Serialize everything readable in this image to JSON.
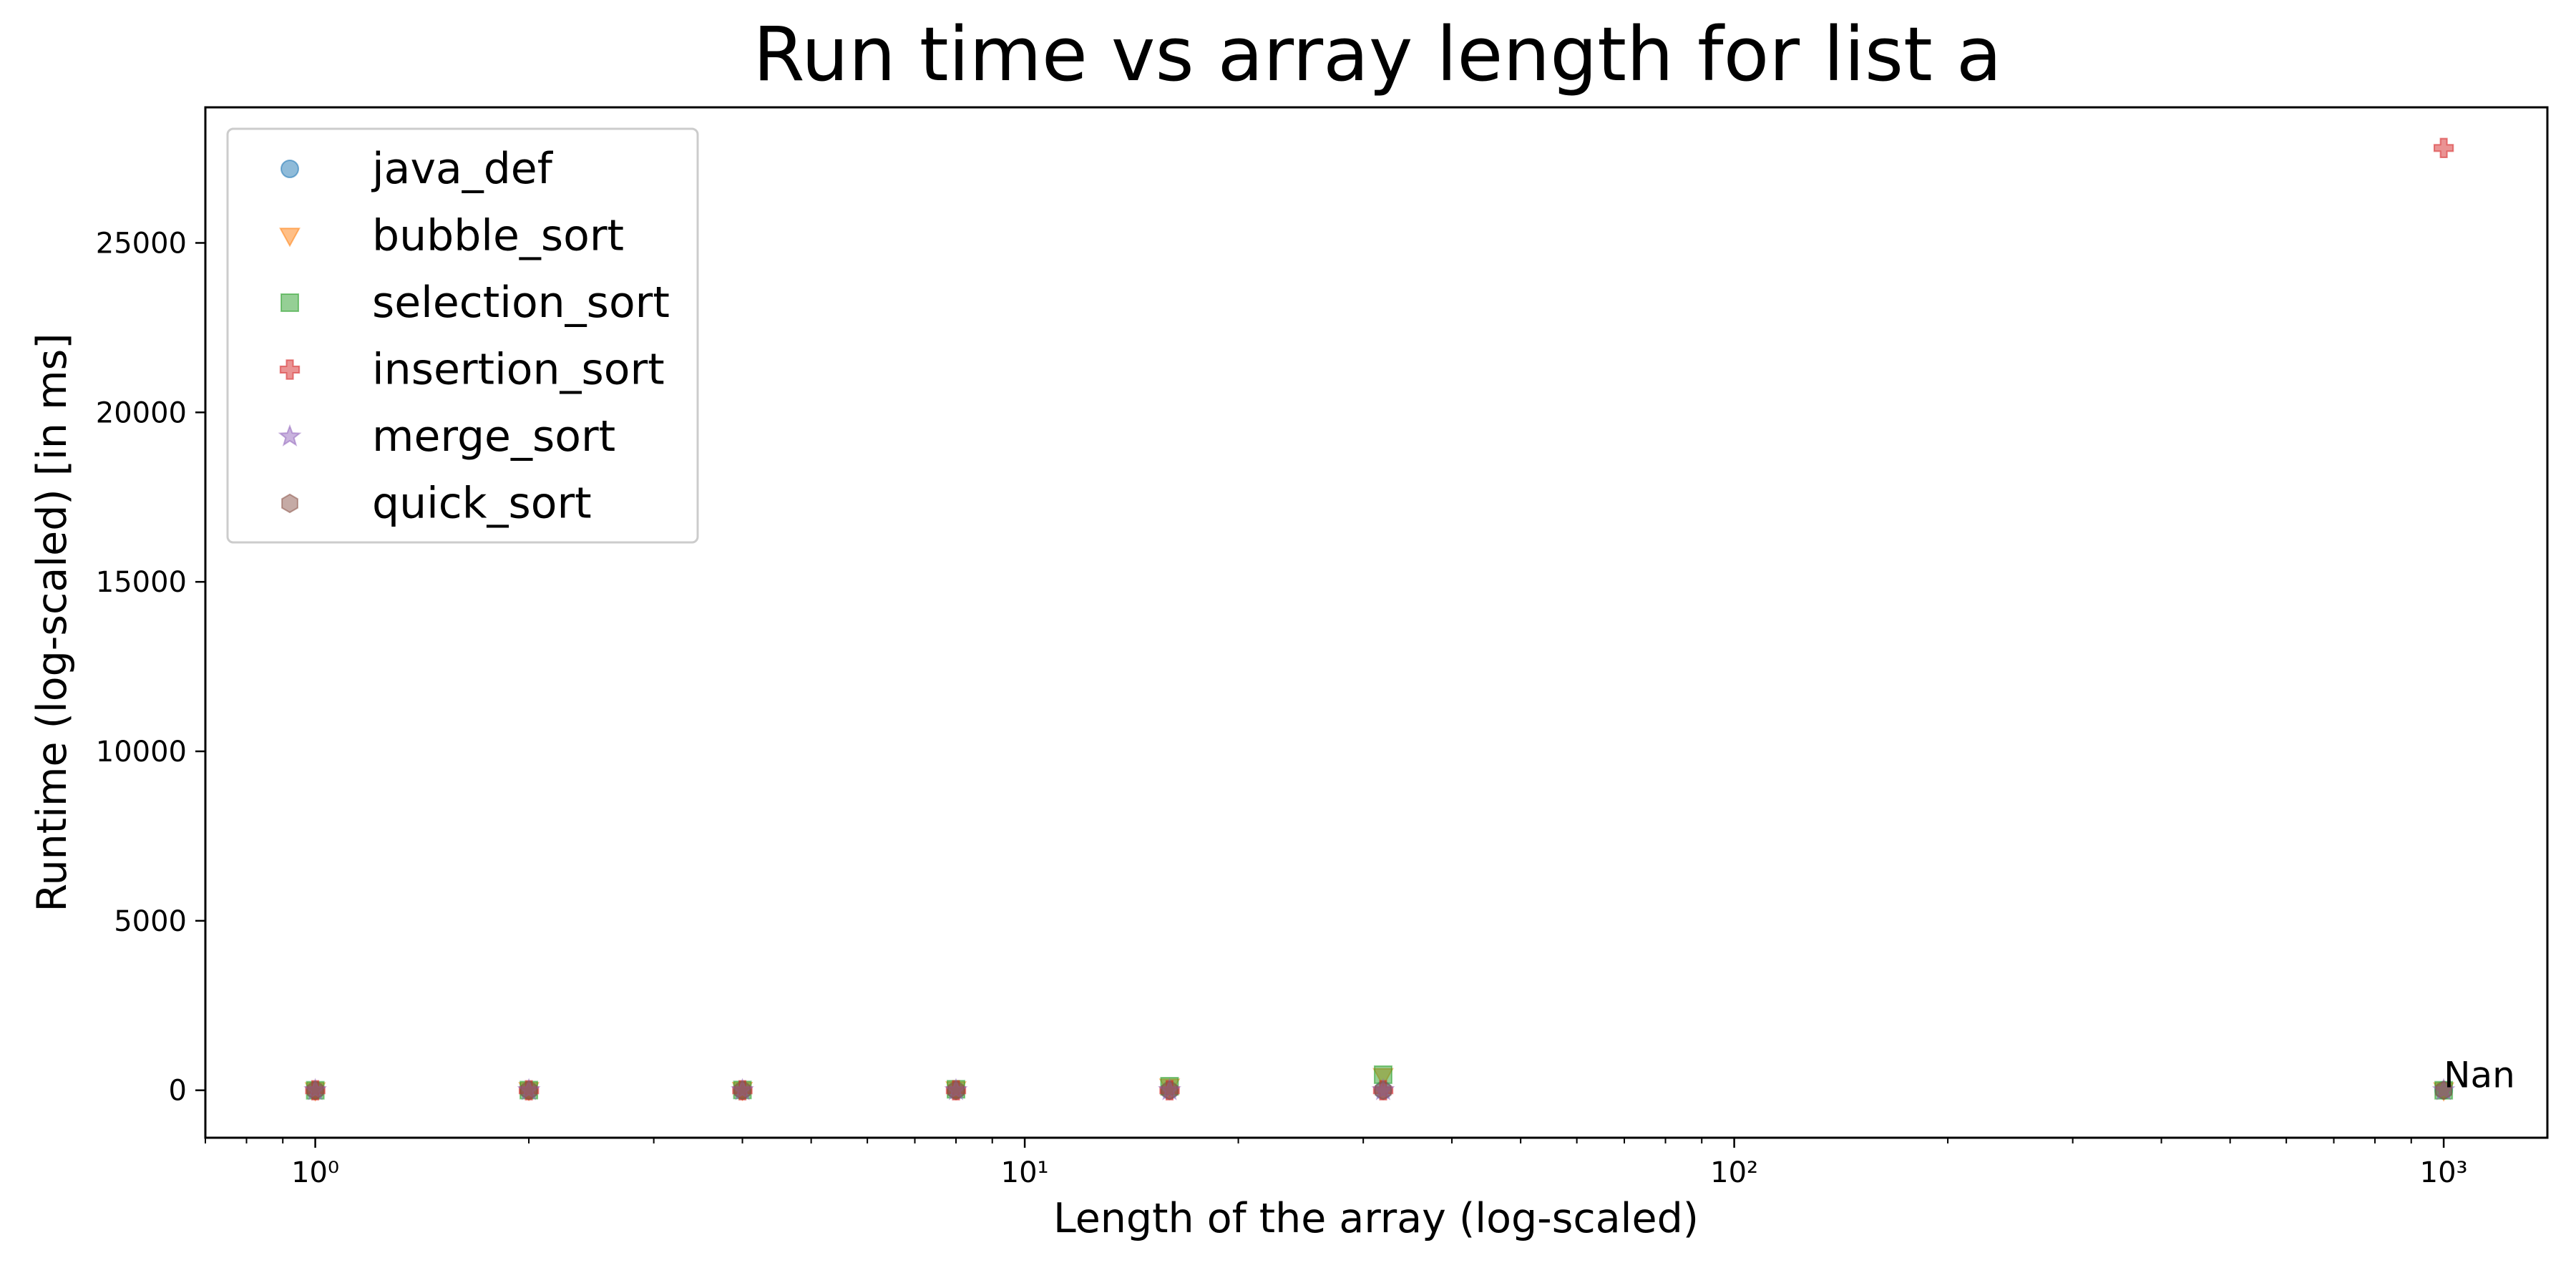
{
  "chart_data": {
    "type": "scatter",
    "title": "Run time vs array length for list a",
    "xlabel": "Length of the array (log-scaled)",
    "ylabel": "Runtime (log-scaled) [in ms]",
    "xscale": "log",
    "xlim": [
      0.7,
      1400
    ],
    "ylim": [
      -1400,
      29000
    ],
    "x_ticks": [
      {
        "value": 1,
        "label": "10⁰"
      },
      {
        "value": 10,
        "label": "10¹"
      },
      {
        "value": 100,
        "label": "10²"
      },
      {
        "value": 1000,
        "label": "10³"
      }
    ],
    "y_ticks": [
      {
        "value": 0,
        "label": "0"
      },
      {
        "value": 5000,
        "label": "5000"
      },
      {
        "value": 10000,
        "label": "10000"
      },
      {
        "value": 15000,
        "label": "15000"
      },
      {
        "value": 20000,
        "label": "20000"
      },
      {
        "value": 25000,
        "label": "25000"
      }
    ],
    "grid": false,
    "legend_position": "top-left",
    "series": [
      {
        "name": "java_def",
        "marker": "circle",
        "color": "#1f77b4",
        "x": [
          1,
          2,
          4,
          8,
          16,
          32,
          1000
        ],
        "y": [
          0,
          0,
          0,
          0,
          0,
          0,
          0
        ]
      },
      {
        "name": "bubble_sort",
        "marker": "triangle-down",
        "color": "#ff7f0e",
        "x": [
          1,
          2,
          4,
          8,
          16,
          32,
          1000
        ],
        "y": [
          0,
          5,
          10,
          30,
          110,
          420,
          0
        ]
      },
      {
        "name": "selection_sort",
        "marker": "square",
        "color": "#2ca02c",
        "x": [
          1,
          2,
          4,
          8,
          16,
          32,
          1000
        ],
        "y": [
          0,
          5,
          10,
          30,
          120,
          460,
          0
        ]
      },
      {
        "name": "insertion_sort",
        "marker": "plus",
        "color": "#d62728",
        "x": [
          1,
          2,
          4,
          8,
          16,
          32,
          1000
        ],
        "y": [
          0,
          0,
          0,
          0,
          0,
          0,
          27800
        ]
      },
      {
        "name": "merge_sort",
        "marker": "star",
        "color": "#9467bd",
        "x": [
          1,
          2,
          4,
          8,
          16,
          32,
          1000
        ],
        "y": [
          0,
          0,
          0,
          0,
          0,
          0,
          0
        ]
      },
      {
        "name": "quick_sort",
        "marker": "hexagon",
        "color": "#8c564b",
        "x": [
          1,
          2,
          4,
          8,
          16,
          32,
          1000
        ],
        "y": [
          0,
          0,
          0,
          0,
          0,
          0,
          0
        ]
      }
    ],
    "annotations": [
      {
        "text": "Nan",
        "x": 1000,
        "y": 0
      }
    ]
  }
}
